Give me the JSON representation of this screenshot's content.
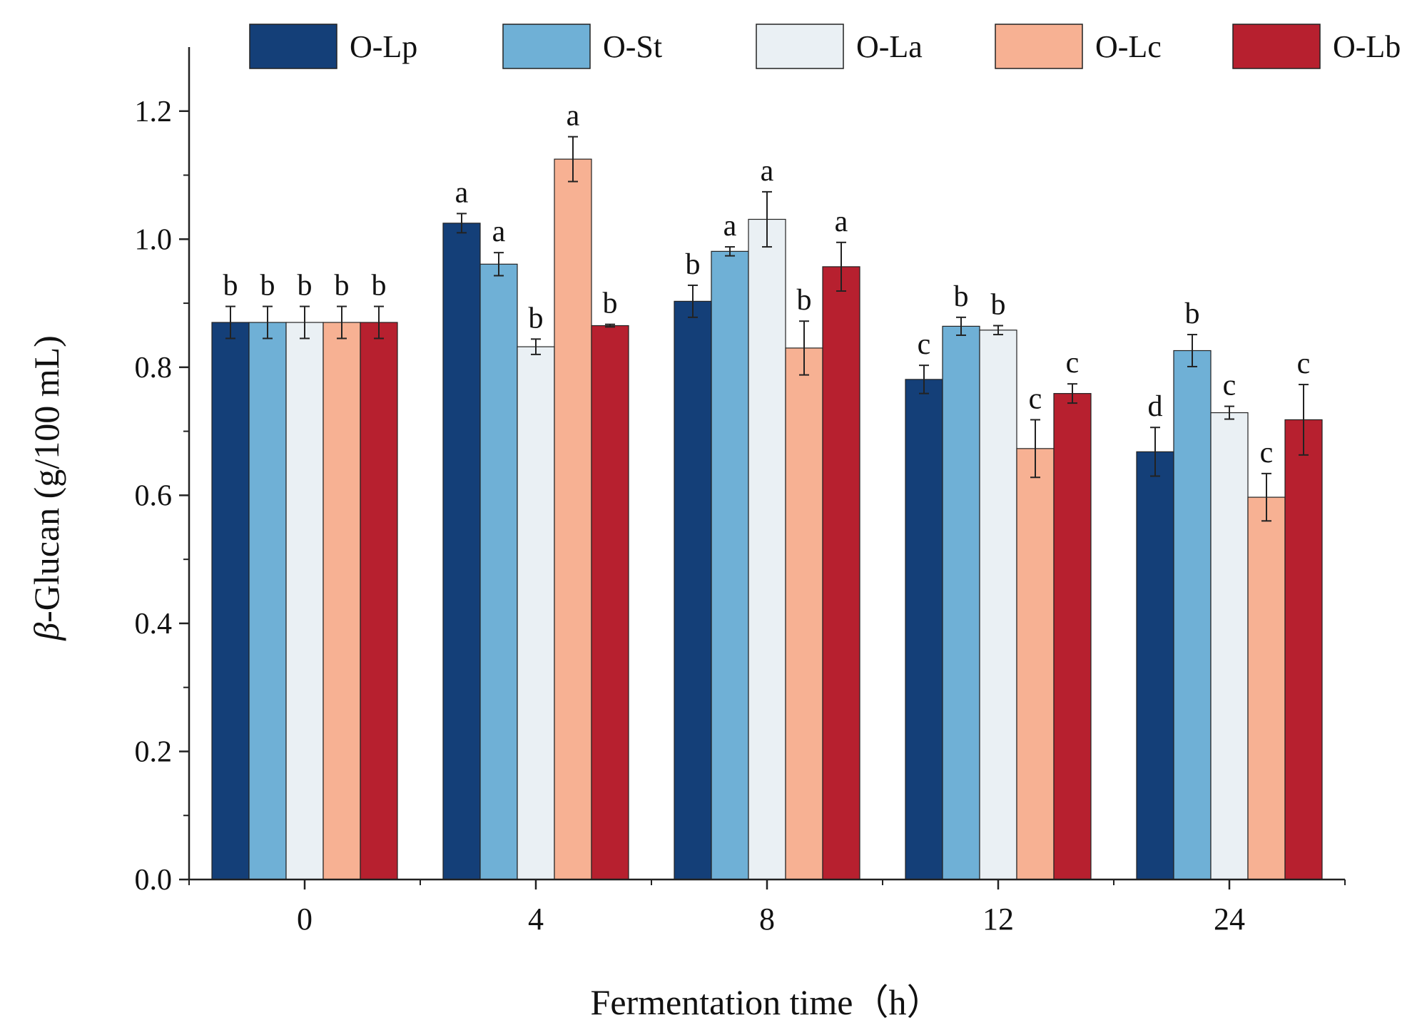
{
  "chart_data": {
    "type": "bar",
    "title": "",
    "xlabel": "Fermentation time（h）",
    "ylabel": "β-Glucan (g/100 mL)",
    "ylabel_symbol": "β",
    "ylabel_rest": "-Glucan (g/100 mL)",
    "categories": [
      "0",
      "4",
      "8",
      "12",
      "24"
    ],
    "ylim": [
      0,
      1.3
    ],
    "yticks": [
      "0.0",
      "0.2",
      "0.4",
      "0.6",
      "0.8",
      "1.0",
      "1.2"
    ],
    "grid": false,
    "legend_position": "top",
    "series": [
      {
        "name": "O-Lp",
        "color": "#143f78",
        "values": [
          0.87,
          1.025,
          0.903,
          0.781,
          0.668
        ],
        "errors": [
          0.025,
          0.015,
          0.025,
          0.022,
          0.038
        ],
        "labels": [
          "b",
          "a",
          "b",
          "c",
          "d"
        ]
      },
      {
        "name": "O-St",
        "color": "#6fb0d6",
        "values": [
          0.87,
          0.961,
          0.981,
          0.864,
          0.826
        ],
        "errors": [
          0.025,
          0.018,
          0.007,
          0.014,
          0.025
        ],
        "labels": [
          "b",
          "a",
          "a",
          "b",
          "b"
        ]
      },
      {
        "name": "O-La",
        "color": "#eaf0f4",
        "values": [
          0.87,
          0.832,
          1.031,
          0.858,
          0.729
        ],
        "errors": [
          0.025,
          0.012,
          0.043,
          0.007,
          0.01
        ],
        "labels": [
          "b",
          "b",
          "a",
          "b",
          "c"
        ]
      },
      {
        "name": "O-Lc",
        "color": "#f7b193",
        "values": [
          0.87,
          1.125,
          0.83,
          0.673,
          0.597
        ],
        "errors": [
          0.025,
          0.035,
          0.042,
          0.045,
          0.037
        ],
        "labels": [
          "b",
          "a",
          "b",
          "c",
          "c"
        ]
      },
      {
        "name": "O-Lb",
        "color": "#b7202f",
        "values": [
          0.87,
          0.865,
          0.957,
          0.759,
          0.718
        ],
        "errors": [
          0.025,
          0.002,
          0.038,
          0.015,
          0.055
        ],
        "labels": [
          "b",
          "b",
          "a",
          "c",
          "c"
        ]
      }
    ]
  }
}
